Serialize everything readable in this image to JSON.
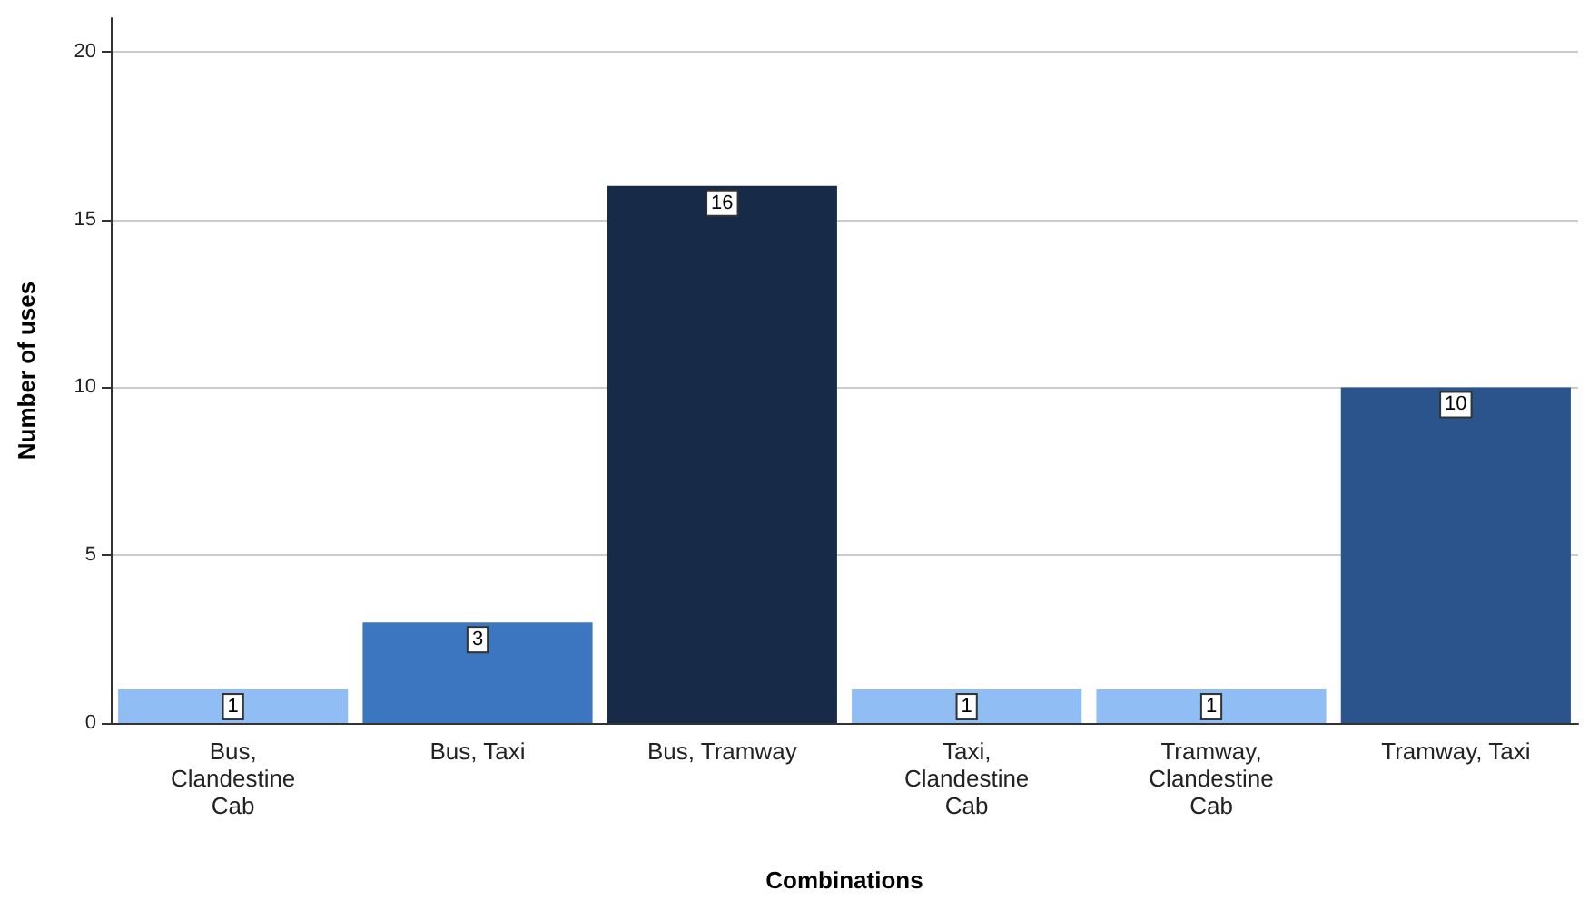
{
  "chart_data": {
    "type": "bar",
    "xlabel": "Combinations",
    "ylabel": "Number of uses",
    "categories": [
      "Bus,\nClandestine\nCab",
      "Bus, Taxi",
      "Bus, Tramway",
      "Taxi,\nClandestine\nCab",
      "Tramway,\nClandestine\nCab",
      "Tramway, Taxi"
    ],
    "values": [
      1,
      3,
      16,
      1,
      1,
      10
    ],
    "colors": [
      "#90bdf4",
      "#3c76c0",
      "#172b49",
      "#90bdf4",
      "#90bdf4",
      "#2b548c"
    ],
    "ylim": [
      0,
      21
    ],
    "yticks": [
      0,
      5,
      10,
      15,
      20
    ],
    "grid": "y",
    "data_labels": true
  }
}
